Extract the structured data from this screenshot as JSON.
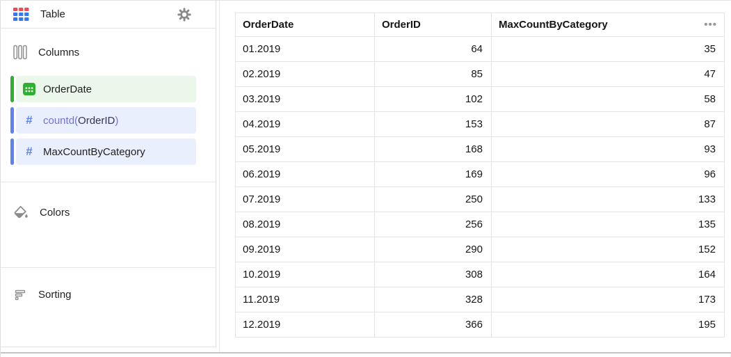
{
  "sidebar": {
    "visualization": {
      "label": "Table"
    },
    "columns_section": {
      "label": "Columns"
    },
    "colors_section": {
      "label": "Colors"
    },
    "sorting_section": {
      "label": "Sorting"
    },
    "fields": [
      {
        "id": "orderdate",
        "theme": "green",
        "icon": "calendar-icon",
        "parts": [
          {
            "text": "OrderDate",
            "kind": "plain"
          }
        ]
      },
      {
        "id": "countd-orderid",
        "theme": "blue",
        "icon": "hash-icon",
        "parts": [
          {
            "text": "countd(",
            "kind": "formula"
          },
          {
            "text": "OrderID",
            "kind": "field"
          },
          {
            "text": ")",
            "kind": "formula"
          }
        ]
      },
      {
        "id": "maxcountbycategory",
        "theme": "blue",
        "icon": "hash-icon",
        "parts": [
          {
            "text": "MaxCountByCategory",
            "kind": "plain"
          }
        ]
      }
    ]
  },
  "table": {
    "columns": [
      {
        "id": "orderdate",
        "label": "OrderDate",
        "align": "left"
      },
      {
        "id": "orderid",
        "label": "OrderID",
        "align": "right"
      },
      {
        "id": "maxcountbycategory",
        "label": "MaxCountByCategory",
        "align": "right"
      }
    ],
    "rows": [
      [
        "01.2019",
        "64",
        "35"
      ],
      [
        "02.2019",
        "85",
        "47"
      ],
      [
        "03.2019",
        "102",
        "58"
      ],
      [
        "04.2019",
        "153",
        "87"
      ],
      [
        "05.2019",
        "168",
        "93"
      ],
      [
        "06.2019",
        "169",
        "96"
      ],
      [
        "07.2019",
        "250",
        "133"
      ],
      [
        "08.2019",
        "256",
        "135"
      ],
      [
        "09.2019",
        "290",
        "152"
      ],
      [
        "10.2019",
        "308",
        "164"
      ],
      [
        "11.2019",
        "328",
        "173"
      ],
      [
        "12.2019",
        "366",
        "195"
      ]
    ]
  },
  "icons": {
    "ellipsis_glyph": "•••",
    "hash_glyph": "#"
  },
  "colors": {
    "accent_red": "#f9484d",
    "accent_blue": "#3478f6",
    "dimension_green": "#30b030",
    "dimension_green_bg": "#ebf7eb",
    "measure_blue": "#5c83f0",
    "measure_blue_bg": "#e9effc",
    "formula_text": "#6e73db",
    "icon_gray": "#8a8a8a",
    "border_gray": "#e4e4e4"
  }
}
